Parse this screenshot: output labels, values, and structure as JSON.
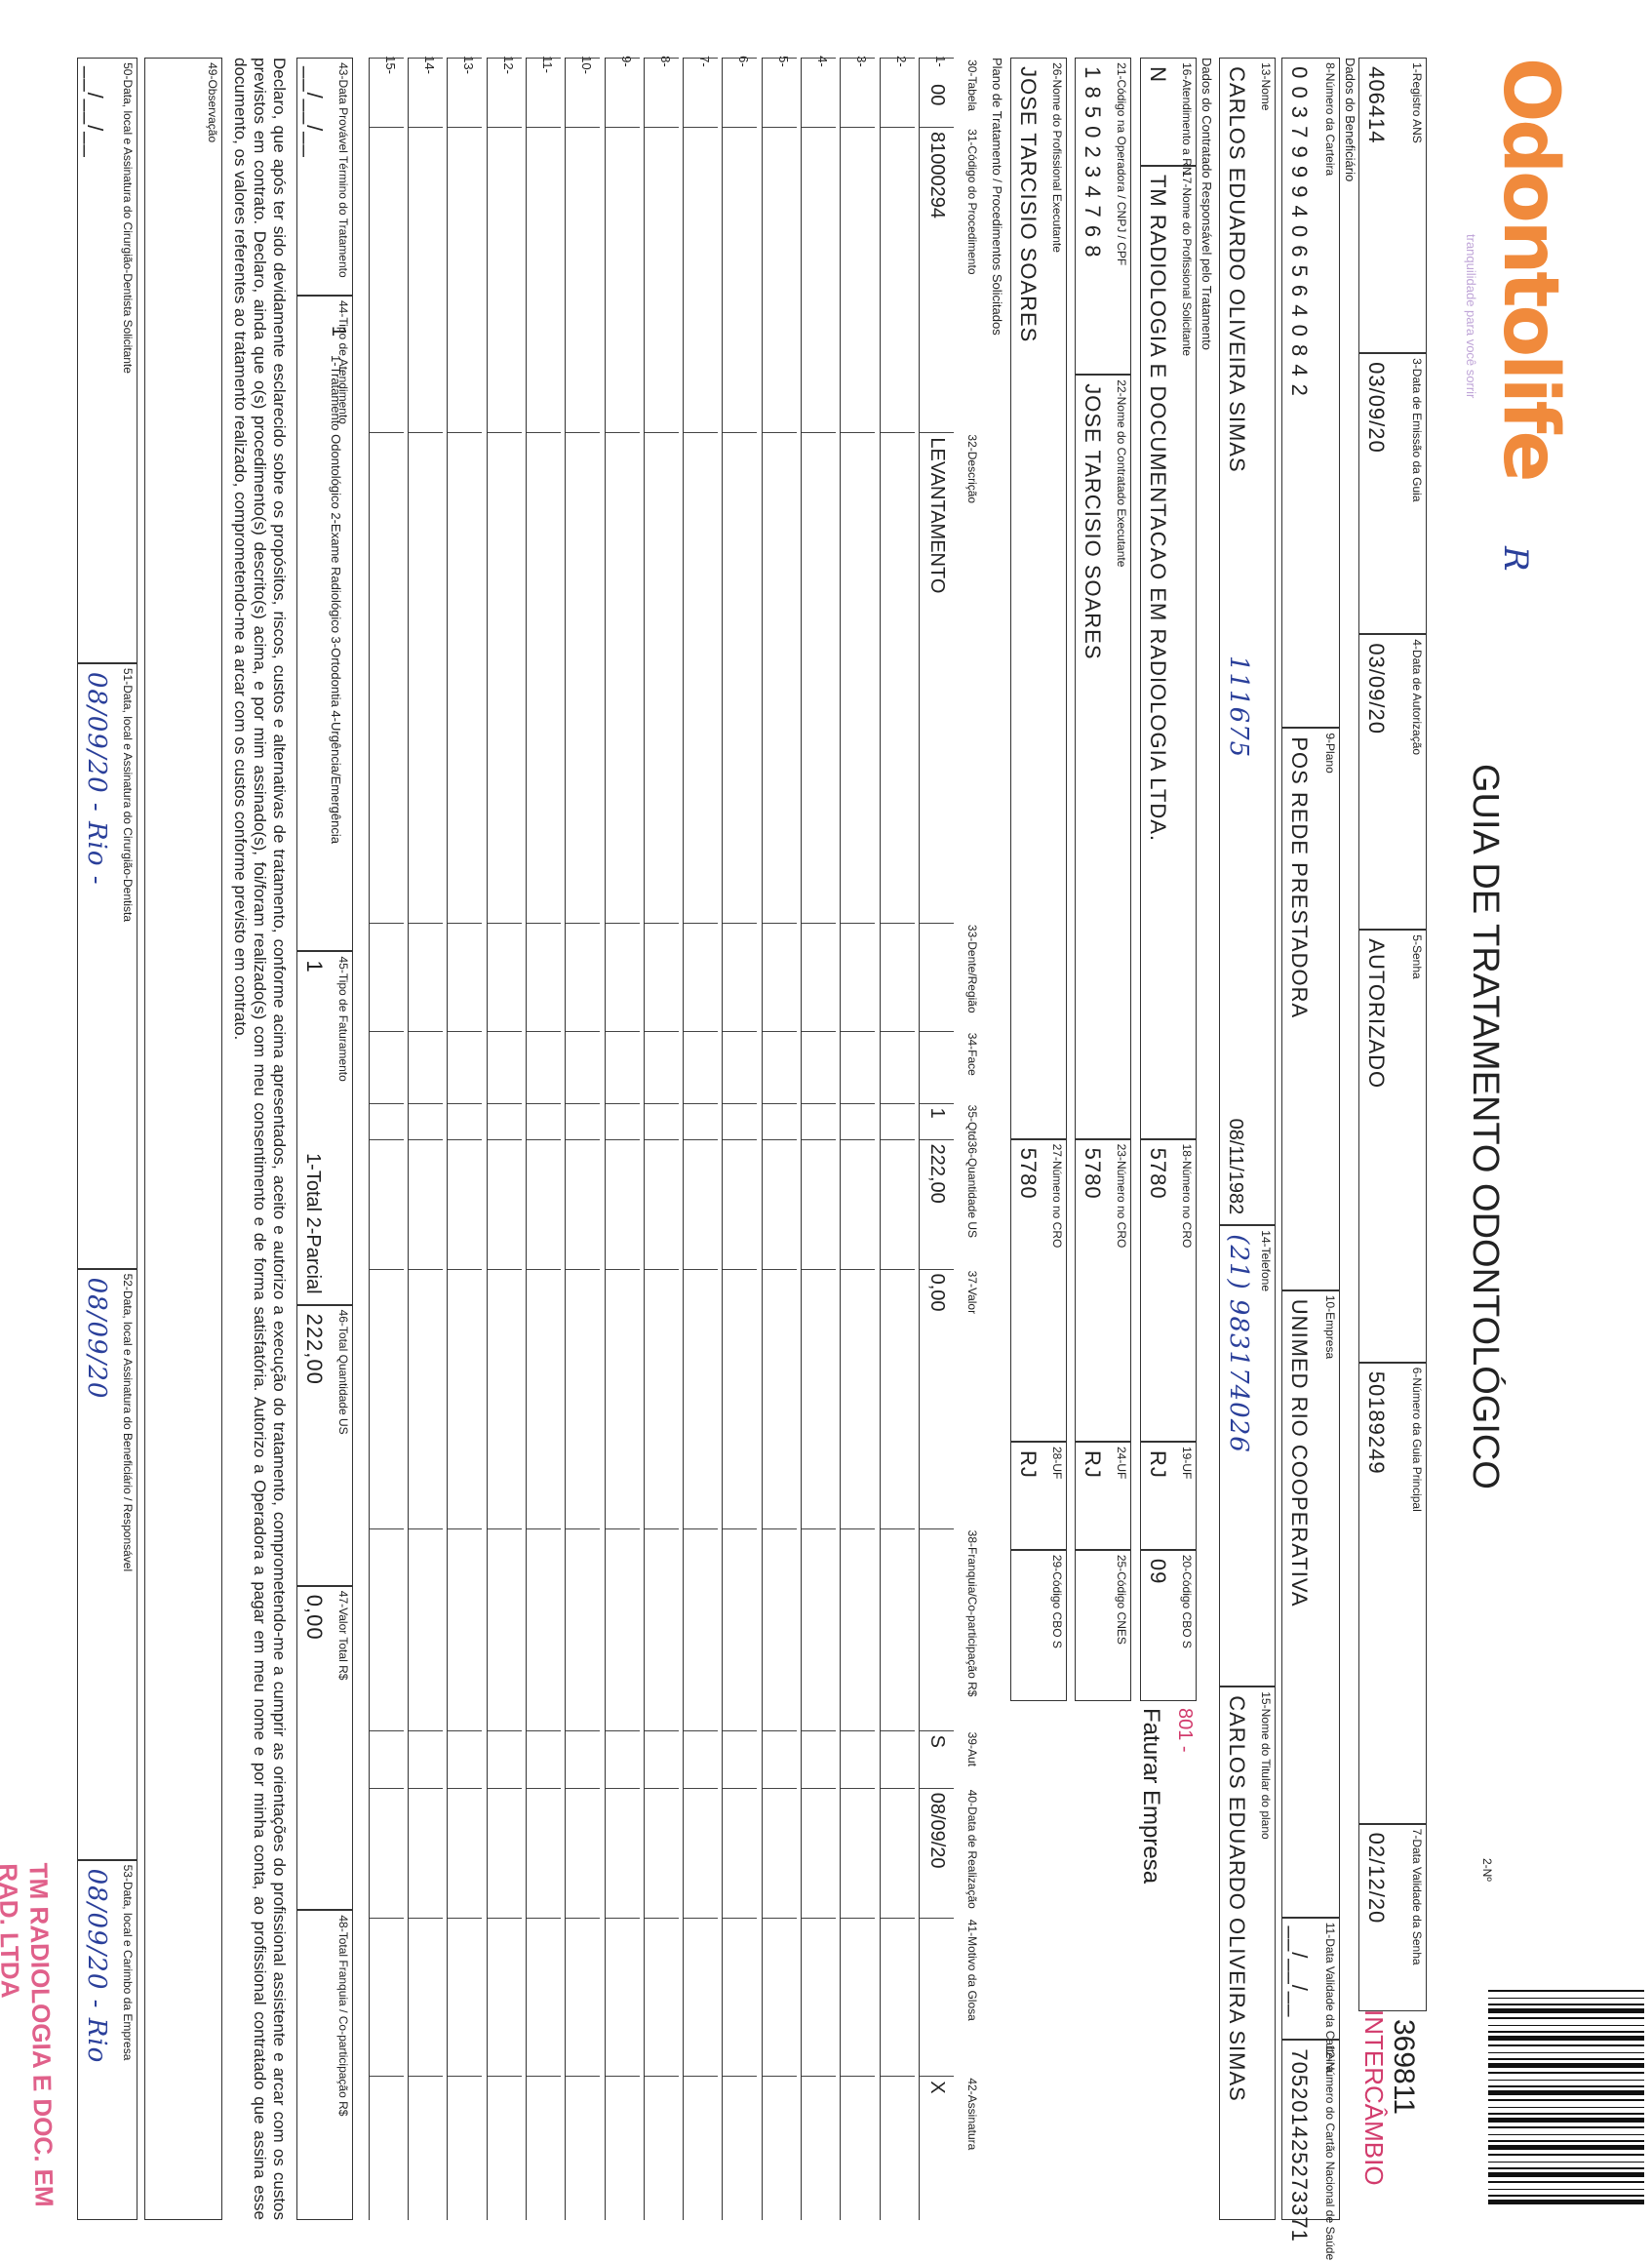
{
  "header": {
    "logo": "Odontolife",
    "logo_tagline": "tranquilidade para você sorrir",
    "title": "GUIA DE TRATAMENTO ODONTOLÓGICO",
    "number_label": "2-Nº",
    "number": "369811",
    "number_tag": "INTERCÂMBIO",
    "handwritten_mark": "R"
  },
  "sections": {
    "beneficiary": "Dados do Beneficiário",
    "contracted": "Dados do Contratado Responsável pelo Tratamento",
    "plan": "Plano de Tratamento / Procedimentos Solicitados"
  },
  "fields": [
    {
      "label": "1-Registro ANS",
      "value": "406414"
    },
    {
      "label": "3-Data de Emissão da Guia",
      "value": "03/09/20"
    },
    {
      "label": "4-Data de Autorização",
      "value": "03/09/20"
    },
    {
      "label": "5-Senha",
      "value": "AUTORIZADO"
    },
    {
      "label": "6-Número da Guia Principal",
      "value": "50189249"
    },
    {
      "label": "7-Data Validade da Senha",
      "value": "02/12/20"
    },
    {
      "label": "8-Número da Carteira",
      "value": "0 0 3 7 9 9 9 4 0 6 5 6 4 0 8 4 2"
    },
    {
      "label": "9-Plano",
      "value": "POS REDE PRESTADORA"
    },
    {
      "label": "10-Empresa",
      "value": "UNIMED RIO COOPERATIVA"
    },
    {
      "label": "11-Data Validade da Carteira",
      "value": "__/__/__"
    },
    {
      "label": "12-Número do Cartão Nacional de Saúde",
      "value": "705201425273371"
    },
    {
      "label": "13-Nome",
      "value": "CARLOS EDUARDO OLIVEIRA SIMAS",
      "note": "08/11/1982",
      "hand": "111675"
    },
    {
      "label": "14-Telefone",
      "hand": "(21) 983174026"
    },
    {
      "label": "15-Nome do Titular do plano",
      "value": "CARLOS EDUARDO OLIVEIRA SIMAS"
    },
    {
      "label": "16-Atendimento a RN",
      "value": "N"
    },
    {
      "label": "17-Nome do Profissional Solicitante",
      "value": "TM RADIOLOGIA E DOCUMENTACAO EM RADIOLOGIA LTDA."
    },
    {
      "label": "18-Número no CRO",
      "value": "5780"
    },
    {
      "label": "19-UF",
      "value": "RJ"
    },
    {
      "label": "20-Código CBO S",
      "value": "09"
    },
    {
      "label": "21-Código na Operadora / CNPJ / CPF",
      "value": "1 8 5 0 2 3 4 7 6 8"
    },
    {
      "label": "22-Nome do Contratado Executante",
      "value": "JOSE TARCISIO SOARES"
    },
    {
      "label": "23-Número no CRO",
      "value": "5780"
    },
    {
      "label": "24-UF",
      "value": "RJ"
    },
    {
      "label": "25-Código CNES"
    },
    {
      "label": "26-Nome do Profissional Executante",
      "value": "JOSE TARCISIO SOARES"
    },
    {
      "label": "27-Número no CRO",
      "value": "5780"
    },
    {
      "label": "28-UF",
      "value": "RJ"
    },
    {
      "label": "29-Código CBO S"
    },
    {
      "label": "43-Data Provável Término do Tratamento",
      "value": "__/__/__"
    },
    {
      "label": "44-Tipo de Atendimento",
      "value": "1",
      "note": "1-Tratamento Odontológico 2-Exame Radiológico 3-Ortodontia 4-Urgência/Emergência"
    },
    {
      "label": "45-Tipo de Faturamento",
      "value": "1",
      "note": "1-Total 2-Parcial"
    },
    {
      "label": "46-Total Quantidade US",
      "value": "222,00"
    },
    {
      "label": "47-Valor Total R$",
      "value": "0,00"
    },
    {
      "label": "48-Total Franquia / Co-participação R$"
    },
    {
      "label": "49-Observação"
    },
    {
      "label": "50-Data, local e Assinatura do Cirurgião-Dentista Solicitante",
      "value": "__/__/__"
    },
    {
      "label": "51-Data, local e Assinatura do Cirurgião-Dentista",
      "hand": "08/09/20 - Rio -"
    },
    {
      "label": "52-Data, local e Assinatura do Beneficiário / Responsável",
      "hand": "08/09/20"
    },
    {
      "label": "53-Data, local e Carimbo da Empresa",
      "hand": "08/09/20 - Rio"
    }
  ],
  "billing_note": {
    "code": "801 -",
    "text": "Faturar Empresa"
  },
  "table": {
    "columns": [
      "30-Tabela",
      "31-Código do Procedimento",
      "32-Descrição",
      "33-Dente/Região",
      "34-Face",
      "35-Qtd",
      "36-Quantidade US",
      "37-Valor",
      "38-Franquia/Co-participação R$",
      "39-Aut",
      "40-Data de Realização",
      "41-Motivo da Glosa",
      "42-Assinatura"
    ],
    "rows": [
      {
        "number": "1-",
        "cells": [
          "00",
          "81000294",
          "LEVANTAMENTO",
          null,
          null,
          "1",
          "222,00",
          "0,00",
          null,
          "S",
          "08/09/20",
          null,
          "X"
        ]
      },
      {
        "number": "2-"
      },
      {
        "number": "3-"
      },
      {
        "number": "4-"
      },
      {
        "number": "5-"
      },
      {
        "number": "6-"
      },
      {
        "number": "7-"
      },
      {
        "number": "8-"
      },
      {
        "number": "9-"
      },
      {
        "number": "10-"
      },
      {
        "number": "11-"
      },
      {
        "number": "12-"
      },
      {
        "number": "13-"
      },
      {
        "number": "14-"
      },
      {
        "number": "15-"
      }
    ]
  },
  "declaration": "Declaro, que após ter sido devidamente esclarecido sobre os propósitos, riscos, custos e alternativas de tratamento, conforme acima apresentados, aceito e autorizo a execução do tratamento, comprometendo-me a cumprir as orientações do profissional assistente e arcar com os custos previstos em contrato. Declaro, ainda que o(s) procedimento(s) descrito(s) acima, e por mim assinado(s), foi/foram realizado(s) com meu consentimento e de forma satisfatória. Autorizo a Operadora a pagar em meu nome e por minha conta, ao profissional contratado que assina esse documento, os valores referentes ao tratamento realizado, comprometendo-me a arcar com os custos conforme previsto em contrato.",
  "stamp": "TM RADIOLOGIA E DOC. EM RAD. LTDA"
}
